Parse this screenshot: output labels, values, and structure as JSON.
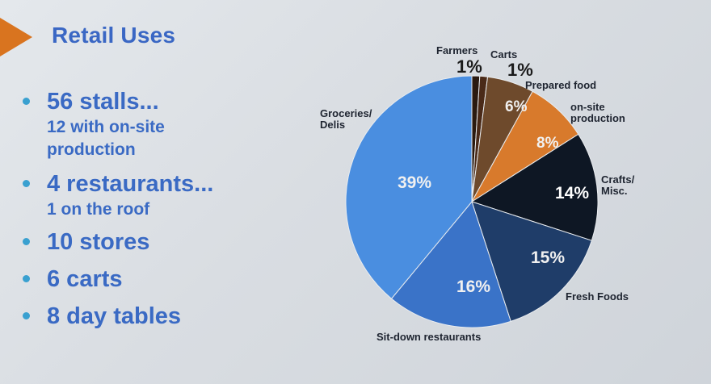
{
  "slide": {
    "title": "Retail Uses",
    "bullets": [
      {
        "main": "56 stalls...",
        "sub": [
          "12 with on-site",
          "production"
        ]
      },
      {
        "main": "4 restaurants...",
        "sub": [
          "1 on the roof"
        ]
      },
      {
        "main": "10 stores",
        "sub": []
      },
      {
        "main": "6 carts",
        "sub": []
      },
      {
        "main": "8 day tables",
        "sub": []
      }
    ],
    "colors": {
      "title": "#3a67c4",
      "bullet_dot": "#39a0d0",
      "arrow": "#d9741f"
    }
  },
  "chart_data": {
    "type": "pie",
    "title": "",
    "start": "12 o'clock, clockwise",
    "slices": [
      {
        "label": "Farmers",
        "value": 1,
        "value_label": "1%",
        "color": "#2a1a10"
      },
      {
        "label": "Carts",
        "value": 1,
        "value_label": "1%",
        "color": "#4a2a18"
      },
      {
        "label": "Prepared food",
        "value": 6,
        "value_label": "6%",
        "color": "#6e4a2c"
      },
      {
        "label": "on-site production",
        "value": 8,
        "value_label": "8%",
        "color": "#d87a2c"
      },
      {
        "label": "Crafts/ Misc.",
        "value": 14,
        "value_label": "14%",
        "color": "#0e1724"
      },
      {
        "label": "Fresh Foods",
        "value": 15,
        "value_label": "15%",
        "color": "#1f3d69"
      },
      {
        "label": "Sit-down restaurants",
        "value": 16,
        "value_label": "16%",
        "color": "#3a73c8"
      },
      {
        "label": "Groceries/ Delis",
        "value": 39,
        "value_label": "39%",
        "color": "#4a8ee0"
      }
    ]
  }
}
